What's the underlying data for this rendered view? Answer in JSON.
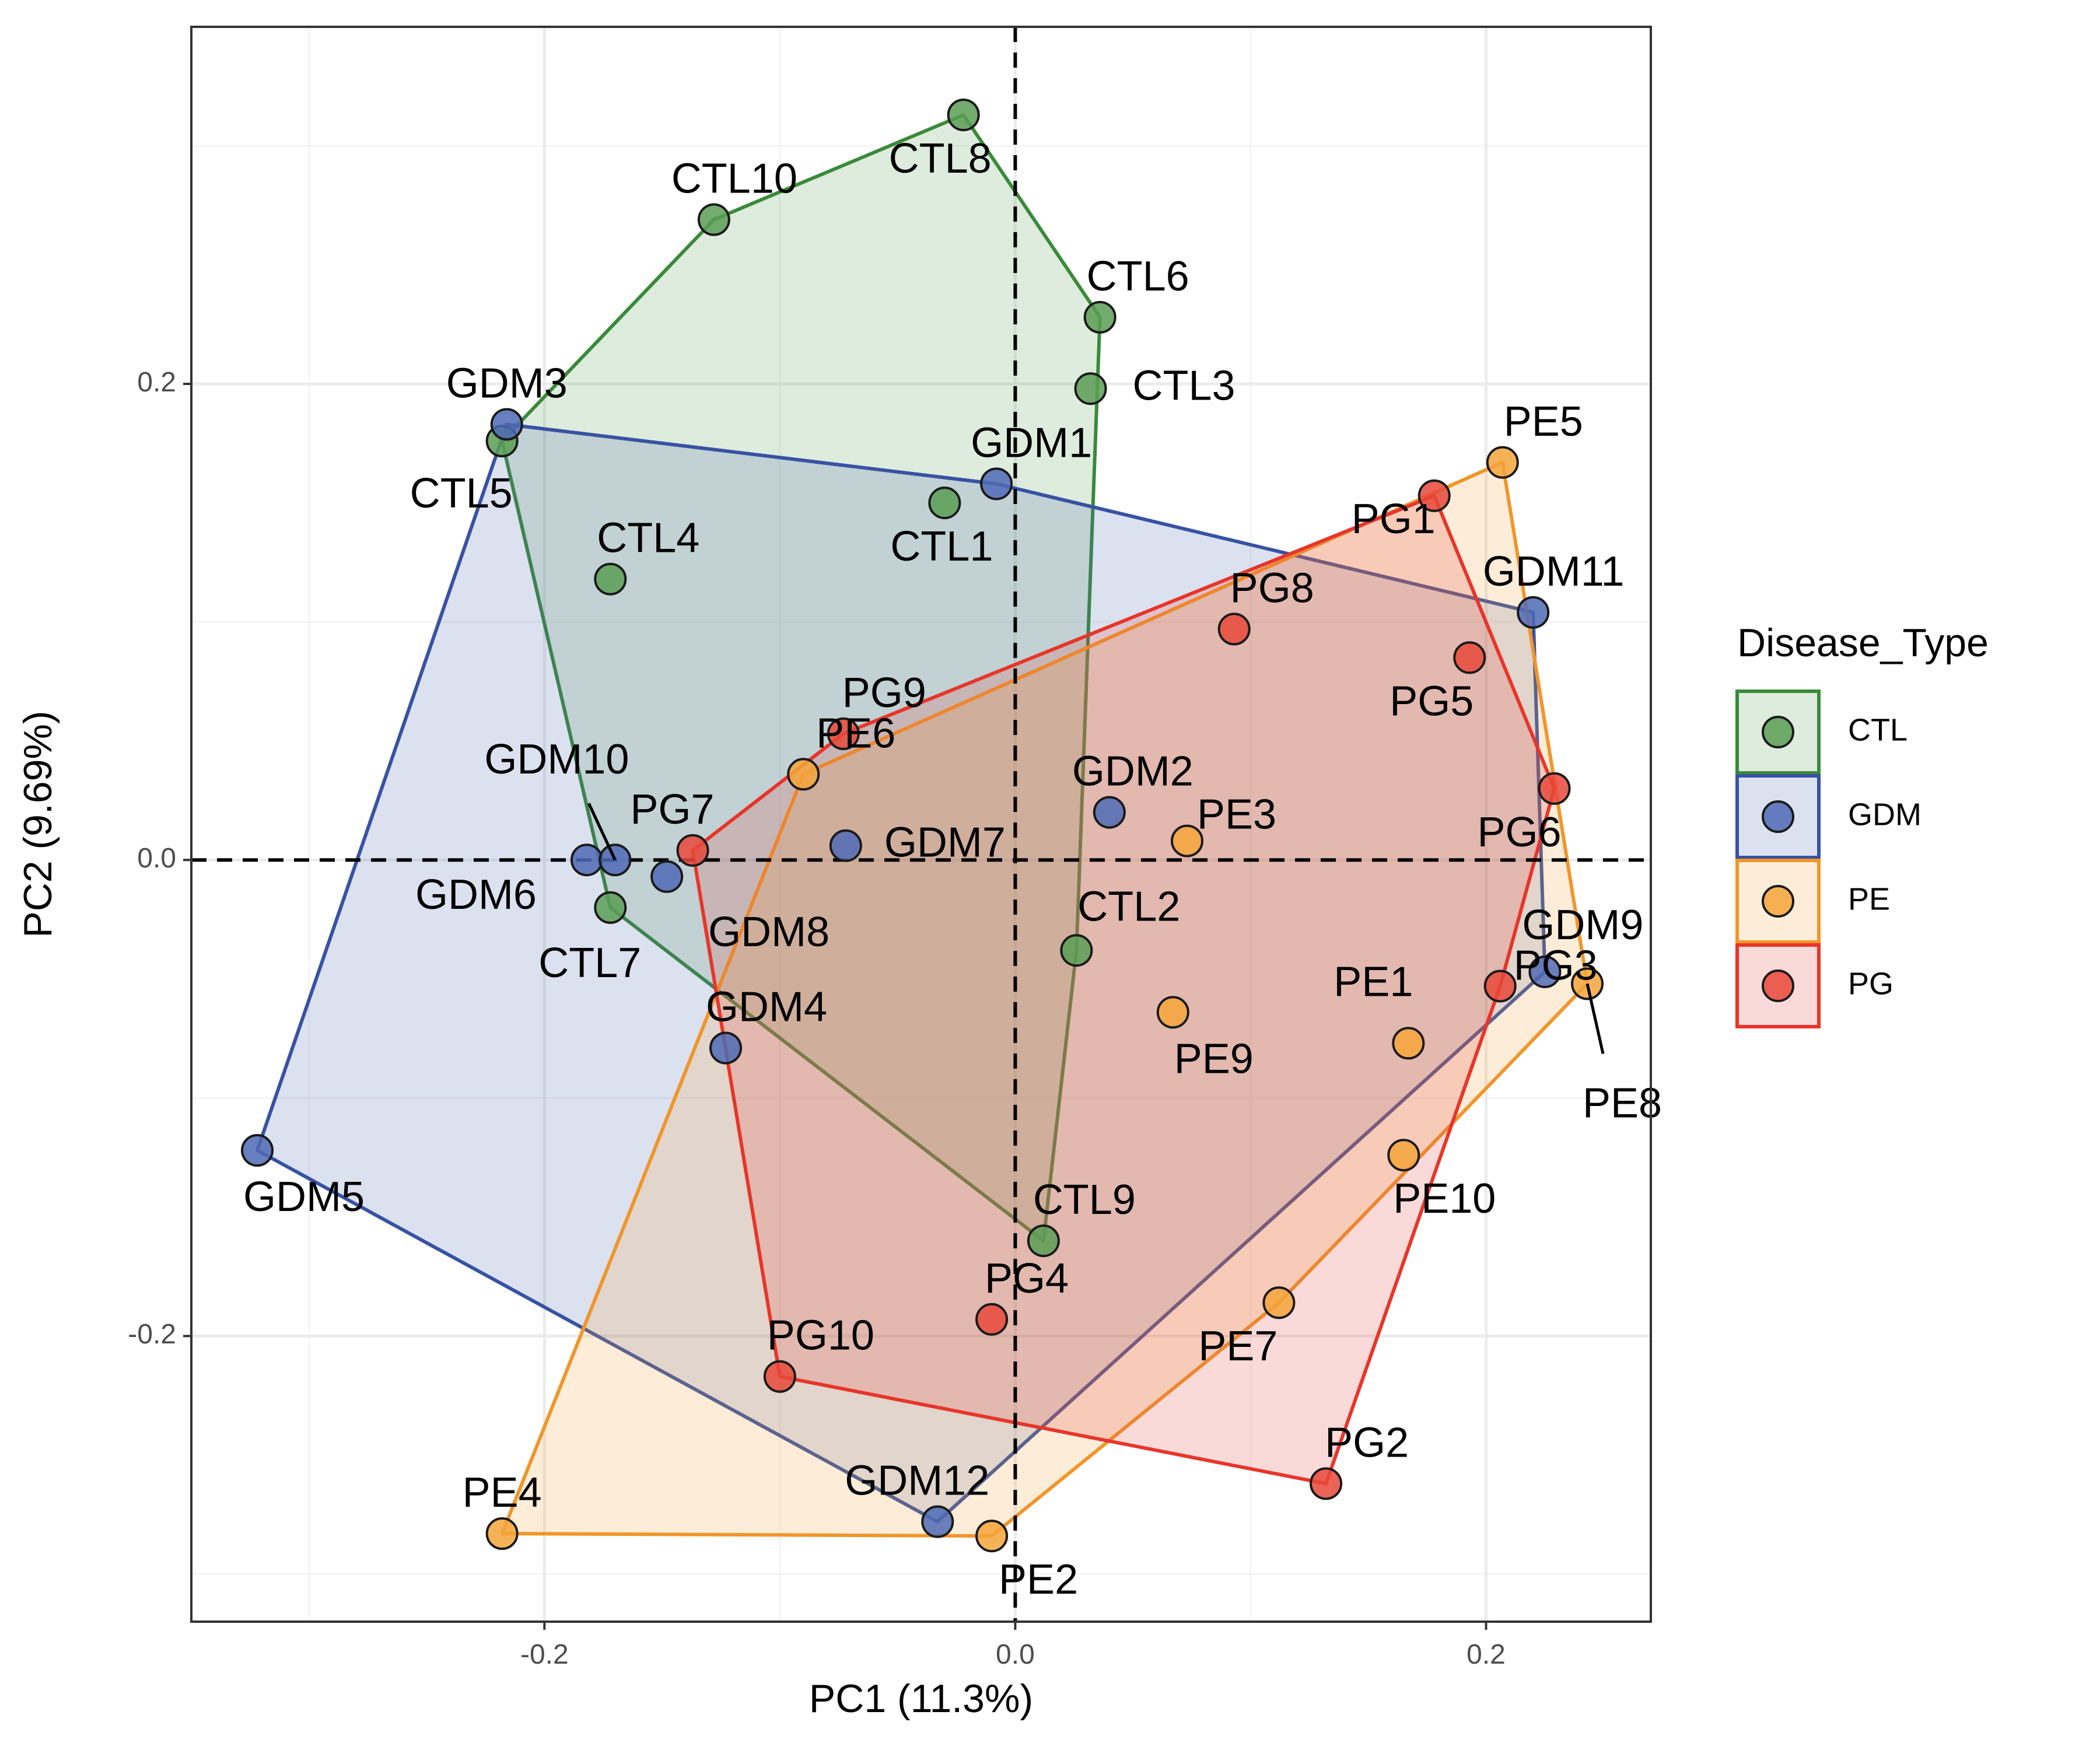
{
  "chart_data": {
    "type": "scatter",
    "xlabel": "PC1 (11.3%)",
    "ylabel": "PC2 (9.69%)",
    "xlim": [
      -0.35,
      0.27
    ],
    "ylim": [
      -0.32,
      0.35
    ],
    "x_ticks": [
      -0.2,
      0.0,
      0.2
    ],
    "y_ticks": [
      -0.2,
      0.0,
      0.2
    ],
    "x_tick_labels": [
      "-0.2",
      "0.0",
      "0.2"
    ],
    "y_tick_labels": [
      "-0.2",
      "0.0",
      "0.2"
    ],
    "grid": true,
    "reference_lines": {
      "x": 0,
      "y": 0,
      "style": "dashed"
    },
    "legend": {
      "title": "Disease_Type",
      "position": "right"
    },
    "series": [
      {
        "name": "CTL",
        "color": "#3a8a3a",
        "fill": "#5a9e55",
        "points": [
          {
            "label": "CTL1",
            "x": -0.03,
            "y": 0.15
          },
          {
            "label": "CTL2",
            "x": 0.026,
            "y": -0.038
          },
          {
            "label": "CTL3",
            "x": 0.032,
            "y": 0.198
          },
          {
            "label": "CTL4",
            "x": -0.172,
            "y": 0.118
          },
          {
            "label": "CTL5",
            "x": -0.218,
            "y": 0.176
          },
          {
            "label": "CTL6",
            "x": 0.036,
            "y": 0.228
          },
          {
            "label": "CTL7",
            "x": -0.172,
            "y": -0.02
          },
          {
            "label": "CTL8",
            "x": -0.022,
            "y": 0.313
          },
          {
            "label": "CTL9",
            "x": 0.012,
            "y": -0.16
          },
          {
            "label": "CTL10",
            "x": -0.128,
            "y": 0.269
          }
        ]
      },
      {
        "name": "GDM",
        "color": "#3852a3",
        "fill": "#4f6ab5",
        "points": [
          {
            "label": "GDM1",
            "x": -0.008,
            "y": 0.158
          },
          {
            "label": "GDM2",
            "x": 0.04,
            "y": 0.02
          },
          {
            "label": "GDM3",
            "x": -0.216,
            "y": 0.183
          },
          {
            "label": "GDM4",
            "x": -0.123,
            "y": -0.079
          },
          {
            "label": "GDM5",
            "x": -0.322,
            "y": -0.122
          },
          {
            "label": "GDM6",
            "x": -0.182,
            "y": 0.0
          },
          {
            "label": "GDM7",
            "x": -0.072,
            "y": 0.006
          },
          {
            "label": "GDM8",
            "x": -0.148,
            "y": -0.007
          },
          {
            "label": "GDM9",
            "x": 0.225,
            "y": -0.047
          },
          {
            "label": "GDM10",
            "x": -0.17,
            "y": 0.0
          },
          {
            "label": "GDM11",
            "x": 0.22,
            "y": 0.104
          },
          {
            "label": "GDM12",
            "x": -0.033,
            "y": -0.278
          }
        ]
      },
      {
        "name": "PE",
        "color": "#f0962a",
        "fill": "#f5a43a",
        "points": [
          {
            "label": "PE1",
            "x": 0.167,
            "y": -0.077
          },
          {
            "label": "PE2",
            "x": -0.01,
            "y": -0.284
          },
          {
            "label": "PE3",
            "x": 0.073,
            "y": 0.008
          },
          {
            "label": "PE4",
            "x": -0.218,
            "y": -0.283
          },
          {
            "label": "PE5",
            "x": 0.207,
            "y": 0.167
          },
          {
            "label": "PE6",
            "x": -0.09,
            "y": 0.036
          },
          {
            "label": "PE7",
            "x": 0.112,
            "y": -0.186
          },
          {
            "label": "PE8",
            "x": 0.243,
            "y": -0.052
          },
          {
            "label": "PE9",
            "x": 0.067,
            "y": -0.064
          },
          {
            "label": "PE10",
            "x": 0.165,
            "y": -0.124
          }
        ]
      },
      {
        "name": "PG",
        "color": "#e8352a",
        "fill": "#e8483a",
        "points": [
          {
            "label": "PG1",
            "x": 0.178,
            "y": 0.153
          },
          {
            "label": "PG2",
            "x": 0.132,
            "y": -0.262
          },
          {
            "label": "PG3",
            "x": 0.206,
            "y": -0.053
          },
          {
            "label": "PG4",
            "x": -0.01,
            "y": -0.193
          },
          {
            "label": "PG5",
            "x": 0.193,
            "y": 0.085
          },
          {
            "label": "PG6",
            "x": 0.229,
            "y": 0.03
          },
          {
            "label": "PG7",
            "x": -0.137,
            "y": 0.004
          },
          {
            "label": "PG8",
            "x": 0.093,
            "y": 0.097
          },
          {
            "label": "PG9",
            "x": -0.073,
            "y": 0.053
          },
          {
            "label": "PG10",
            "x": -0.1,
            "y": -0.217
          }
        ]
      }
    ]
  }
}
